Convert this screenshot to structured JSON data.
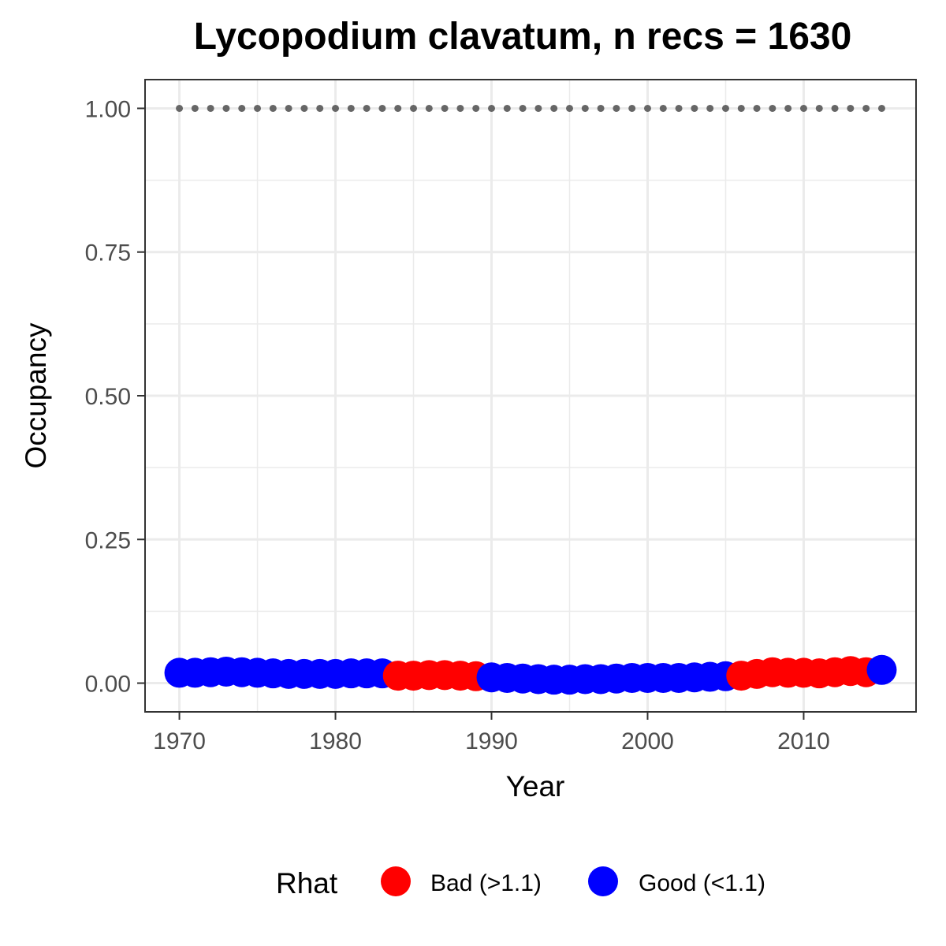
{
  "chart_data": {
    "type": "scatter",
    "title": "Lycopodium clavatum, n recs = 1630",
    "xlabel": "Year",
    "ylabel": "Occupancy",
    "xlim": [
      1967.8,
      2017.2
    ],
    "ylim": [
      -0.05,
      1.05
    ],
    "x_ticks": [
      1970,
      1980,
      1990,
      2000,
      2010
    ],
    "x_tick_labels": [
      "1970",
      "1980",
      "1990",
      "2000",
      "2010"
    ],
    "y_ticks": [
      0,
      0.25,
      0.5,
      0.75,
      1.0
    ],
    "y_tick_labels": [
      "0.00",
      "0.25",
      "0.50",
      "0.75",
      "1.00"
    ],
    "grid": true,
    "colors": {
      "bad": "#FF0000",
      "good": "#0000FF",
      "reference": "#666666",
      "grid": "#EBEBEB",
      "border": "#333333"
    },
    "legend": {
      "title": "Rhat",
      "position": "bottom",
      "entries": [
        {
          "key": "bad",
          "label": "Bad (>1.1)",
          "color": "#FF0000"
        },
        {
          "key": "good",
          "label": "Good (<1.1)",
          "color": "#0000FF"
        }
      ]
    },
    "reference_line": {
      "y": 1.0,
      "style": "dotted"
    },
    "x": [
      1970,
      1971,
      1972,
      1973,
      1974,
      1975,
      1976,
      1977,
      1978,
      1979,
      1980,
      1981,
      1982,
      1983,
      1984,
      1985,
      1986,
      1987,
      1988,
      1989,
      1990,
      1991,
      1992,
      1993,
      1994,
      1995,
      1996,
      1997,
      1998,
      1999,
      2000,
      2001,
      2002,
      2003,
      2004,
      2005,
      2006,
      2007,
      2008,
      2009,
      2010,
      2011,
      2012,
      2013,
      2014,
      2015
    ],
    "y": [
      0.018,
      0.018,
      0.019,
      0.02,
      0.019,
      0.018,
      0.017,
      0.016,
      0.016,
      0.016,
      0.016,
      0.017,
      0.017,
      0.017,
      0.013,
      0.013,
      0.014,
      0.014,
      0.013,
      0.012,
      0.01,
      0.009,
      0.008,
      0.007,
      0.006,
      0.006,
      0.007,
      0.007,
      0.008,
      0.009,
      0.009,
      0.009,
      0.009,
      0.01,
      0.011,
      0.012,
      0.013,
      0.016,
      0.019,
      0.018,
      0.018,
      0.017,
      0.019,
      0.021,
      0.019,
      0.023
    ],
    "rhat": [
      "good",
      "good",
      "good",
      "good",
      "good",
      "good",
      "good",
      "good",
      "good",
      "good",
      "good",
      "good",
      "good",
      "good",
      "bad",
      "bad",
      "bad",
      "bad",
      "bad",
      "bad",
      "good",
      "good",
      "good",
      "good",
      "good",
      "good",
      "good",
      "good",
      "good",
      "good",
      "good",
      "good",
      "good",
      "good",
      "good",
      "good",
      "bad",
      "bad",
      "bad",
      "bad",
      "bad",
      "bad",
      "bad",
      "bad",
      "bad",
      "good"
    ]
  }
}
